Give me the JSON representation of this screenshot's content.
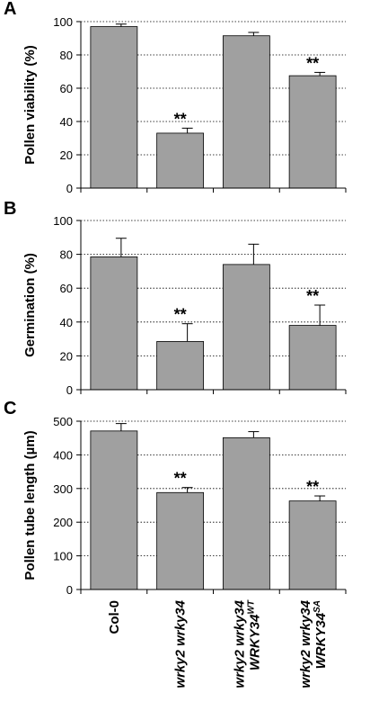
{
  "chart_data": [
    {
      "type": "bar",
      "panel": "A",
      "ylabel": "Pollen viability (%)",
      "values": [
        97,
        33,
        91.5,
        67.5
      ],
      "errors": [
        1.5,
        3,
        2,
        2
      ],
      "significance": [
        null,
        "**",
        null,
        "**"
      ],
      "color": "#a0a0a0",
      "ylim": [
        0,
        100
      ],
      "yticks": [
        0,
        20,
        40,
        60,
        80,
        100
      ],
      "grid": true
    },
    {
      "type": "bar",
      "panel": "B",
      "ylabel": "Germination (%)",
      "values": [
        78.5,
        28.5,
        74,
        38
      ],
      "errors": [
        11,
        10.5,
        12,
        12
      ],
      "significance": [
        null,
        "**",
        null,
        "**"
      ],
      "color": "#a0a0a0",
      "ylim": [
        0,
        100
      ],
      "yticks": [
        0,
        20,
        40,
        60,
        80,
        100
      ],
      "grid": true
    },
    {
      "type": "bar",
      "panel": "C",
      "ylabel": "Pollen tube length (µm)",
      "values": [
        471,
        288,
        451,
        263
      ],
      "errors": [
        22,
        15,
        18,
        15
      ],
      "significance": [
        null,
        "**",
        null,
        "**"
      ],
      "color": "#a0a0a0",
      "ylim": [
        0,
        500
      ],
      "yticks": [
        0,
        100,
        200,
        300,
        400,
        500
      ],
      "grid": true,
      "categories": [
        [
          "Col-0"
        ],
        [
          "wrky2 wrky34"
        ],
        [
          "wrky2 wrky34",
          "WRKY34",
          "WT"
        ],
        [
          "wrky2 wrky34",
          "WRKY34",
          "SA"
        ]
      ],
      "italic": [
        false,
        true,
        true,
        true
      ]
    }
  ]
}
